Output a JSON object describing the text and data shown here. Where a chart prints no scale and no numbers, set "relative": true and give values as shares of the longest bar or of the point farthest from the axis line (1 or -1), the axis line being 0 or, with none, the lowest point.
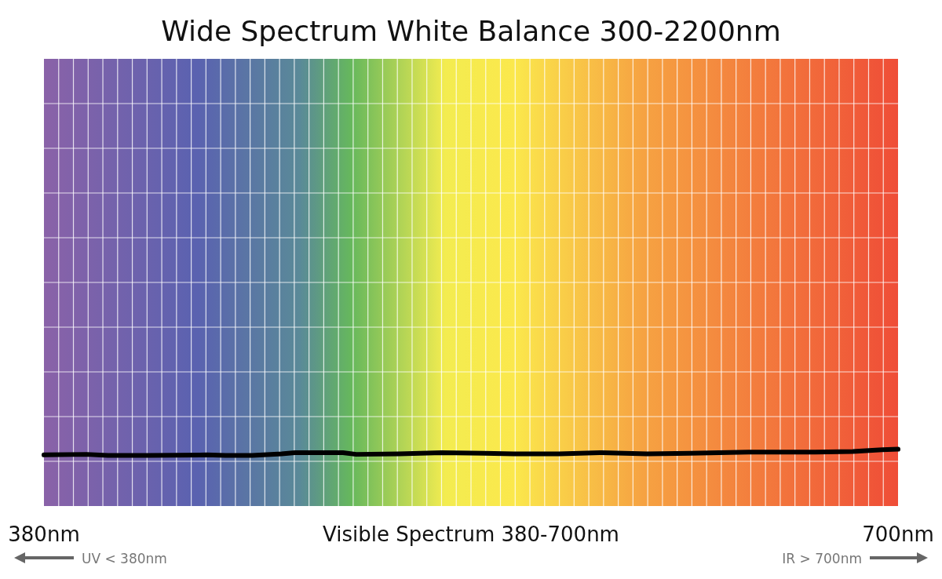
{
  "chart_data": {
    "type": "line",
    "title": "Wide Spectrum White Balance 300-2200nm",
    "xlabel": "Visible Spectrum 380-700nm",
    "x": [
      380,
      396,
      404,
      419,
      441,
      448,
      458,
      469,
      474,
      492,
      497,
      513,
      529,
      545,
      556,
      573,
      589,
      606,
      622,
      644,
      669,
      683,
      694,
      700
    ],
    "series": [
      {
        "color": "#000000",
        "values": [
          0.9,
          0.91,
          0.89,
          0.89,
          0.9,
          0.89,
          0.89,
          0.92,
          0.94,
          0.94,
          0.91,
          0.92,
          0.94,
          0.93,
          0.92,
          0.92,
          0.94,
          0.92,
          0.93,
          0.95,
          0.95,
          0.96,
          0.99,
          1
        ]
      }
    ],
    "relative": true,
    "xlim": [
      380,
      700
    ],
    "xticks": [
      {
        "value": 380,
        "label": "380nm"
      },
      {
        "value": 700,
        "label": "700nm"
      }
    ],
    "grid": true,
    "marker": "none",
    "line_style": "solid",
    "annotations": [
      "UV < 380nm",
      "IR > 700nm"
    ]
  }
}
